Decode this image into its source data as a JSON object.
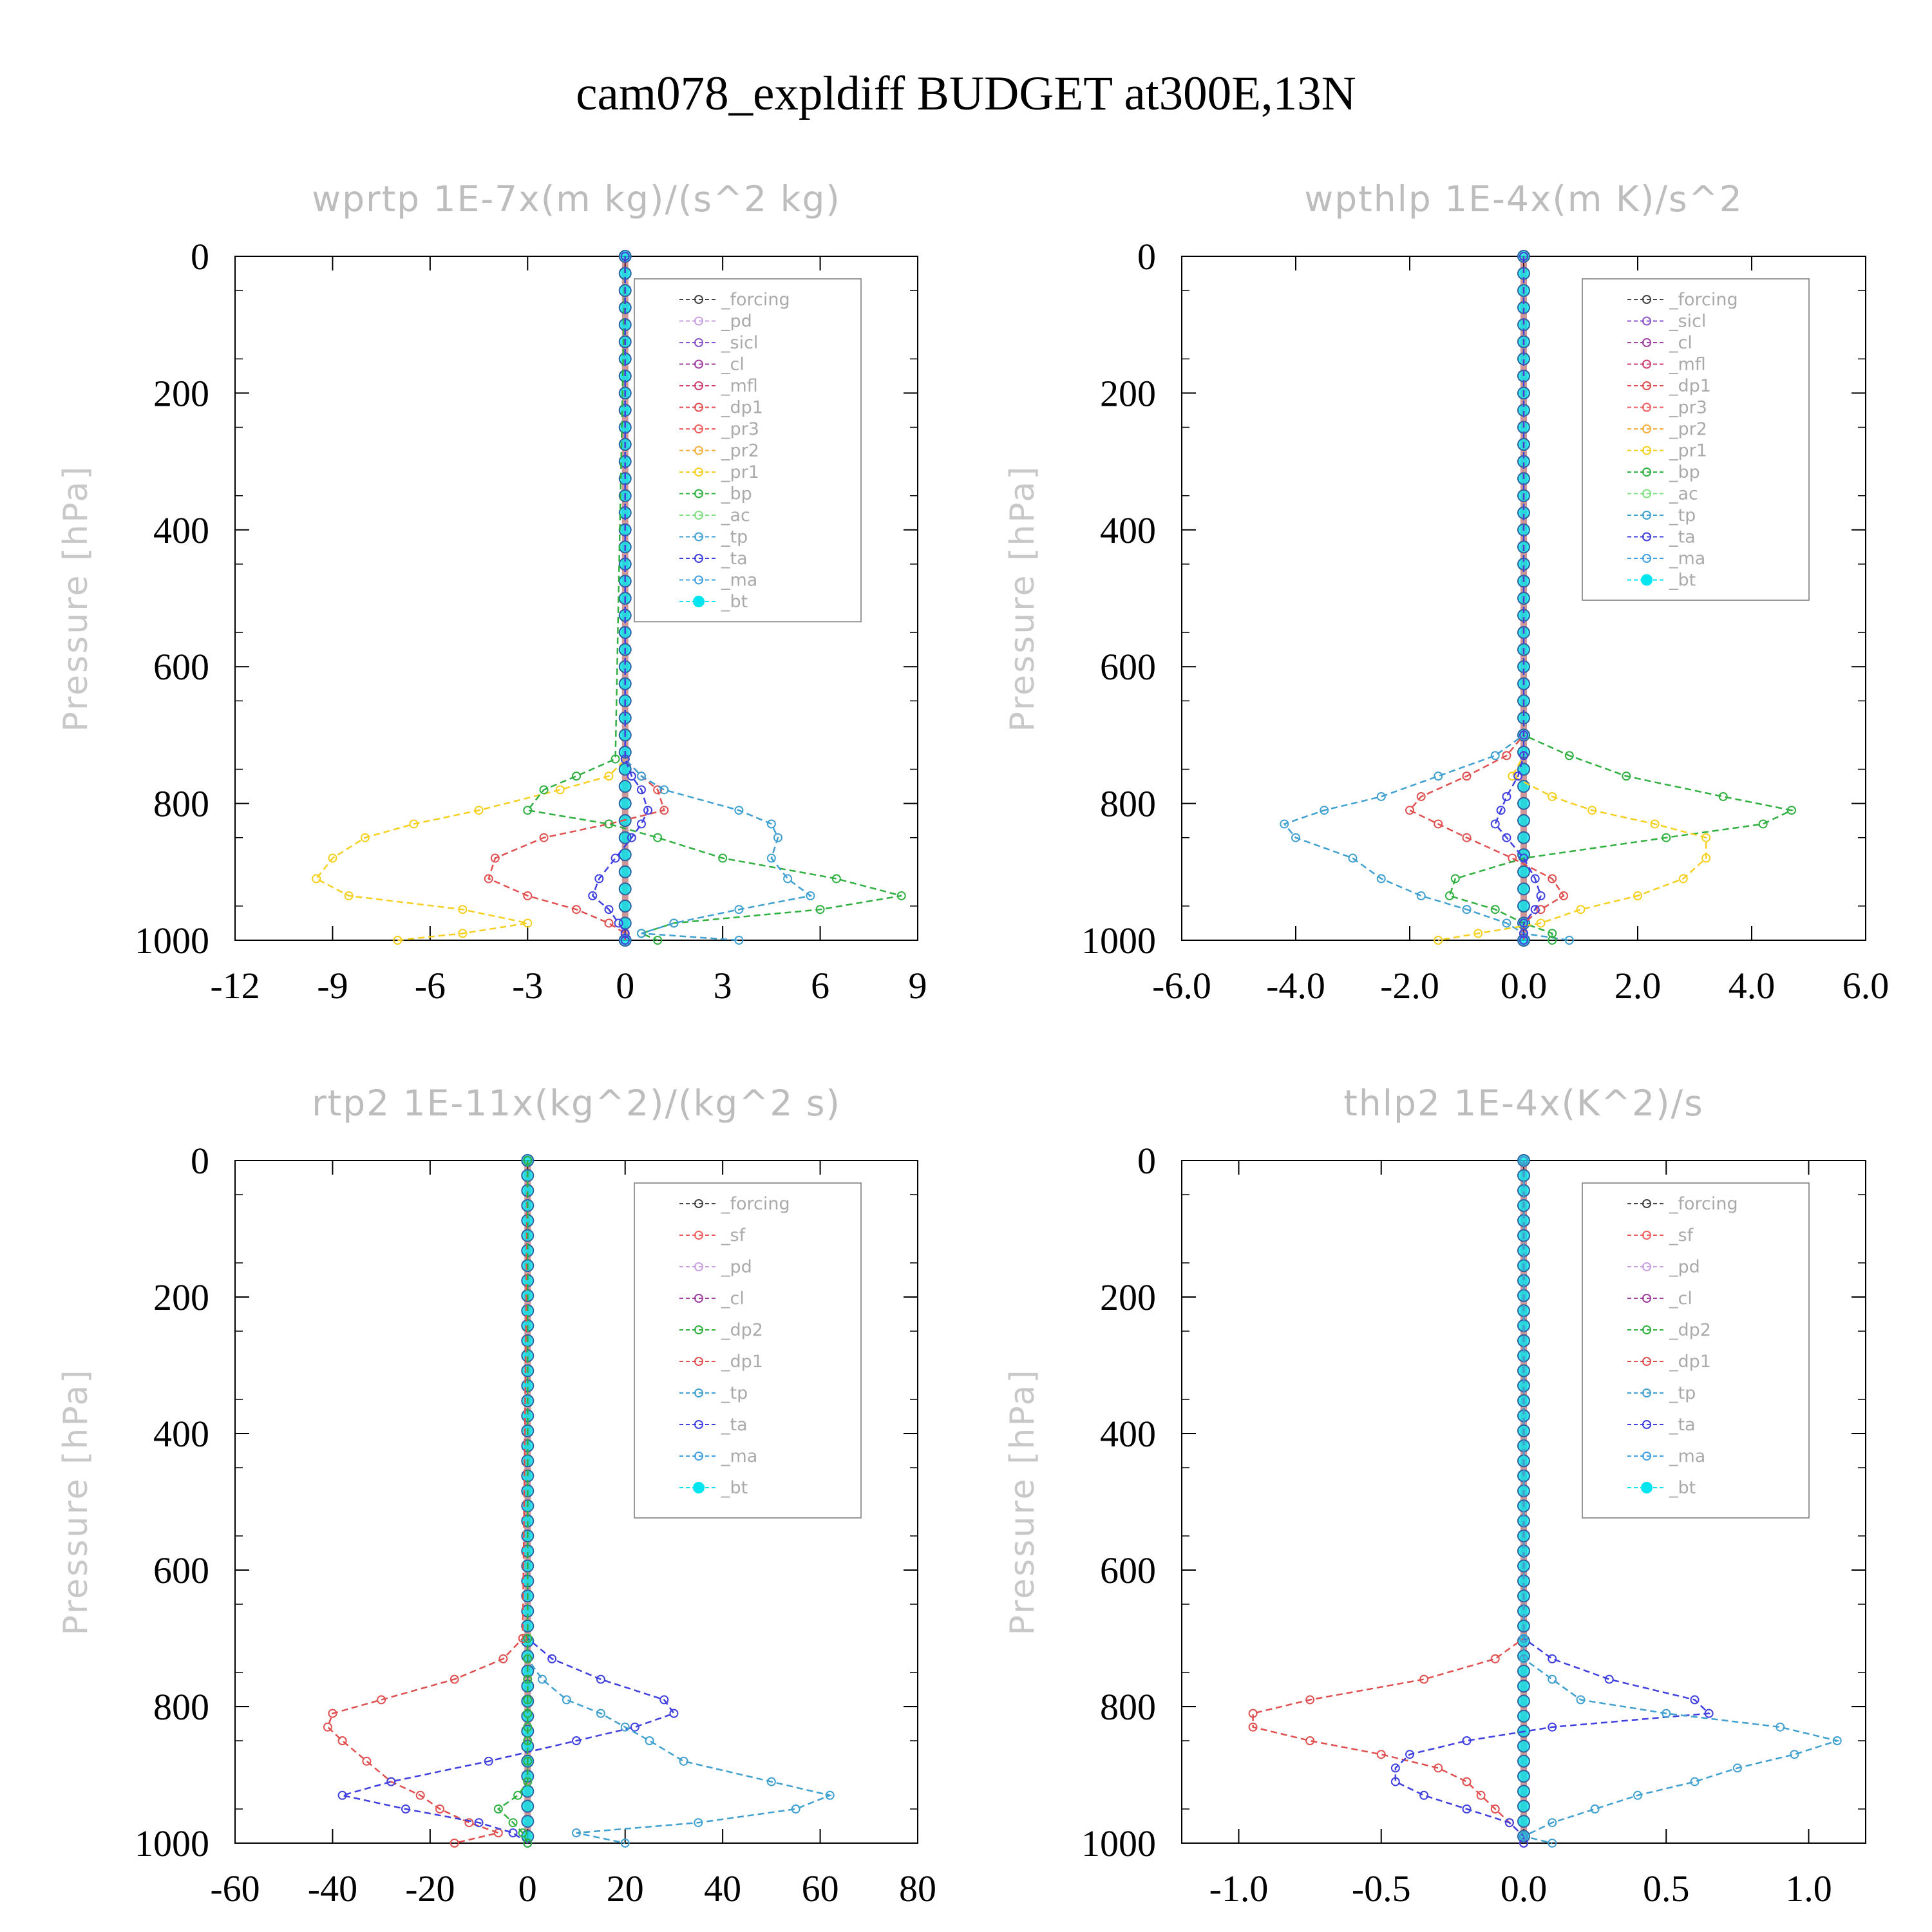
{
  "figure": {
    "title": "cam078_expldiff  BUDGET at300E,13N"
  },
  "colors": {
    "forcing": "#444444",
    "pd": "#c9a0e0",
    "sicl": "#8a55c8",
    "cl": "#a040a0",
    "mfl": "#d04070",
    "dp1": "#e05050",
    "pr3": "#f06060",
    "pr2": "#f5b040",
    "pr1": "#f5d020",
    "bp": "#30b040",
    "ac": "#80e080",
    "tp": "#40a0d0",
    "ta": "#4040e0",
    "ma": "#40a0e0",
    "bt": "#00e5ee",
    "sf": "#f06060",
    "dp2": "#30b040"
  },
  "chart_data": [
    {
      "type": "line",
      "title": "wprtp   1E-7x(m kg)/(s^2 kg)",
      "ylabel": "Pressure [hPa]",
      "xlim": [
        -12,
        9
      ],
      "ylim": [
        1000,
        0
      ],
      "xticks": [
        "-12",
        "-9",
        "-6",
        "-3",
        "0",
        "3",
        "6",
        "9"
      ],
      "yticks": [
        "0",
        "200",
        "400",
        "600",
        "800",
        "1000"
      ],
      "legend_position": "upper-right",
      "legend": [
        "_forcing",
        "_pd",
        "_sicl",
        "_cl",
        "_mfl",
        "_dp1",
        "_pr3",
        "_pr2",
        "_pr1",
        "_bp",
        "_ac",
        "_tp",
        "_ta",
        "_ma",
        "_bt"
      ],
      "p": [
        0,
        735,
        760,
        780,
        810,
        830,
        850,
        880,
        910,
        935,
        955,
        975,
        990,
        1000
      ],
      "series": [
        {
          "name": "_dp1",
          "values": [
            0,
            0,
            0.5,
            1.0,
            1.2,
            -0.5,
            -2.5,
            -4,
            -4.2,
            -3,
            -1.5,
            -0.5,
            0,
            0
          ]
        },
        {
          "name": "_pr1",
          "values": [
            0,
            0,
            -0.5,
            -2,
            -4.5,
            -6.5,
            -8,
            -9,
            -9.5,
            -8.5,
            -5,
            -3,
            -5,
            -7
          ]
        },
        {
          "name": "_bp",
          "values": [
            0,
            -0.3,
            -1.5,
            -2.5,
            -3,
            -0.5,
            1,
            3,
            6.5,
            8.5,
            6,
            1.5,
            0.5,
            1
          ]
        },
        {
          "name": "_tp",
          "values": [
            0,
            0,
            0.5,
            1.2,
            3.5,
            4.5,
            4.7,
            4.5,
            5,
            5.7,
            3.5,
            1.5,
            0.5,
            3.5
          ]
        },
        {
          "name": "_ta",
          "values": [
            0,
            0,
            0.2,
            0.5,
            0.7,
            0.5,
            0.2,
            -0.3,
            -0.8,
            -1,
            -0.5,
            -0.2,
            0,
            0
          ]
        }
      ]
    },
    {
      "type": "line",
      "title": "wpthlp   1E-4x(m K)/s^2",
      "ylabel": "Pressure [hPa]",
      "xlim": [
        -6,
        6
      ],
      "ylim": [
        1000,
        0
      ],
      "xticks": [
        "-6.0",
        "-4.0",
        "-2.0",
        "0.0",
        "2.0",
        "4.0",
        "6.0"
      ],
      "yticks": [
        "0",
        "200",
        "400",
        "600",
        "800",
        "1000"
      ],
      "legend_position": "upper-right",
      "legend": [
        "_forcing",
        "_sicl",
        "_cl",
        "_mfl",
        "_dp1",
        "_pr3",
        "_pr2",
        "_pr1",
        "_bp",
        "_ac",
        "_tp",
        "_ta",
        "_ma",
        "_bt"
      ],
      "p": [
        0,
        700,
        730,
        760,
        790,
        810,
        830,
        850,
        880,
        910,
        935,
        955,
        975,
        990,
        1000
      ],
      "series": [
        {
          "name": "_tp",
          "values": [
            0,
            0,
            -0.5,
            -1.5,
            -2.5,
            -3.5,
            -4.2,
            -4,
            -3,
            -2.5,
            -1.8,
            -1,
            -0.3,
            0,
            0.8
          ]
        },
        {
          "name": "_dp1",
          "values": [
            0,
            0,
            -0.3,
            -1,
            -1.8,
            -2,
            -1.5,
            -1,
            -0.2,
            0.5,
            0.7,
            0.3,
            0,
            0,
            0
          ]
        },
        {
          "name": "_bp",
          "values": [
            0,
            0,
            0.8,
            1.8,
            3.5,
            4.7,
            4.2,
            2.5,
            0,
            -1.2,
            -1.3,
            -0.5,
            0,
            0.5,
            0.5
          ]
        },
        {
          "name": "_pr1",
          "values": [
            0,
            0,
            0,
            -0.2,
            0.5,
            1.2,
            2.3,
            3.2,
            3.2,
            2.8,
            2,
            1,
            0.3,
            -0.8,
            -1.5
          ]
        },
        {
          "name": "_ta",
          "values": [
            0,
            0,
            0,
            -0.1,
            -0.3,
            -0.4,
            -0.5,
            -0.3,
            0,
            0.2,
            0.3,
            0.2,
            0,
            0,
            0
          ]
        }
      ]
    },
    {
      "type": "line",
      "title": "rtp2   1E-11x(kg^2)/(kg^2 s)",
      "ylabel": "Pressure [hPa]",
      "xlim": [
        -60,
        80
      ],
      "ylim": [
        1000,
        0
      ],
      "xticks": [
        "-60",
        "-40",
        "-20",
        "0",
        "20",
        "40",
        "60",
        "80"
      ],
      "yticks": [
        "0",
        "200",
        "400",
        "600",
        "800",
        "1000"
      ],
      "legend_position": "upper-right",
      "legend": [
        "_forcing",
        "_sf",
        "_pd",
        "_cl",
        "_dp2",
        "_dp1",
        "_tp",
        "_ta",
        "_ma",
        "_bt"
      ],
      "p": [
        0,
        700,
        730,
        760,
        790,
        810,
        830,
        850,
        880,
        910,
        930,
        950,
        970,
        985,
        1000
      ],
      "series": [
        {
          "name": "_dp1",
          "values": [
            0,
            -1,
            -5,
            -15,
            -30,
            -40,
            -41,
            -38,
            -33,
            -28,
            -22,
            -18,
            -12,
            -6,
            -15
          ]
        },
        {
          "name": "_ta",
          "values": [
            0,
            0,
            5,
            15,
            28,
            30,
            22,
            10,
            -8,
            -28,
            -38,
            -25,
            -10,
            -3,
            0
          ]
        },
        {
          "name": "_tp",
          "values": [
            0,
            0,
            0,
            3,
            8,
            15,
            20,
            25,
            32,
            50,
            62,
            55,
            35,
            10,
            20
          ]
        },
        {
          "name": "_dp2",
          "values": [
            0,
            0,
            0,
            0,
            0,
            0,
            0,
            0,
            0,
            0,
            -2,
            -6,
            -3,
            -1,
            0
          ]
        }
      ]
    },
    {
      "type": "line",
      "title": "thlp2   1E-4x(K^2)/s",
      "ylabel": "Pressure [hPa]",
      "xlim": [
        -1.2,
        1.2
      ],
      "ylim": [
        1000,
        0
      ],
      "xticks": [
        "-1.0",
        "-0.5",
        "0.0",
        "0.5",
        "1.0"
      ],
      "yticks": [
        "0",
        "200",
        "400",
        "600",
        "800",
        "1000"
      ],
      "legend_position": "upper-right",
      "legend": [
        "_forcing",
        "_sf",
        "_pd",
        "_cl",
        "_dp2",
        "_dp1",
        "_tp",
        "_ta",
        "_ma",
        "_bt"
      ],
      "p": [
        0,
        700,
        730,
        760,
        790,
        810,
        830,
        850,
        870,
        890,
        910,
        930,
        950,
        970,
        990,
        1000
      ],
      "series": [
        {
          "name": "_dp1",
          "values": [
            0,
            0,
            -0.1,
            -0.35,
            -0.75,
            -0.95,
            -0.95,
            -0.75,
            -0.5,
            -0.3,
            -0.2,
            -0.15,
            -0.1,
            -0.05,
            0,
            0
          ]
        },
        {
          "name": "_ta",
          "values": [
            0,
            0,
            0.1,
            0.3,
            0.6,
            0.65,
            0.1,
            -0.2,
            -0.4,
            -0.45,
            -0.45,
            -0.35,
            -0.2,
            -0.05,
            0,
            0
          ]
        },
        {
          "name": "_tp",
          "values": [
            0,
            0,
            0,
            0.1,
            0.2,
            0.5,
            0.9,
            1.1,
            0.95,
            0.75,
            0.6,
            0.4,
            0.25,
            0.1,
            0,
            0.1
          ]
        }
      ]
    }
  ]
}
